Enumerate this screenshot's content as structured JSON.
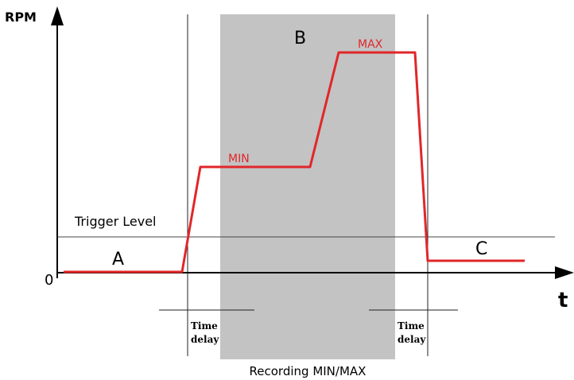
{
  "axes": {
    "y_label": "RPM",
    "x_label": "t",
    "origin_label": "0"
  },
  "regions": {
    "a": "A",
    "b": "B",
    "c": "C"
  },
  "curve": {
    "min_label": "MIN",
    "max_label": "MAX",
    "color": "#e0272a"
  },
  "trigger": {
    "label": "Trigger Level"
  },
  "delays": {
    "left": {
      "line1": "Time",
      "line2": "delay"
    },
    "right": {
      "line1": "Time",
      "line2": "delay"
    }
  },
  "recording": {
    "label": "Recording MIN/MAX",
    "shade": "#c3c3c3"
  }
}
